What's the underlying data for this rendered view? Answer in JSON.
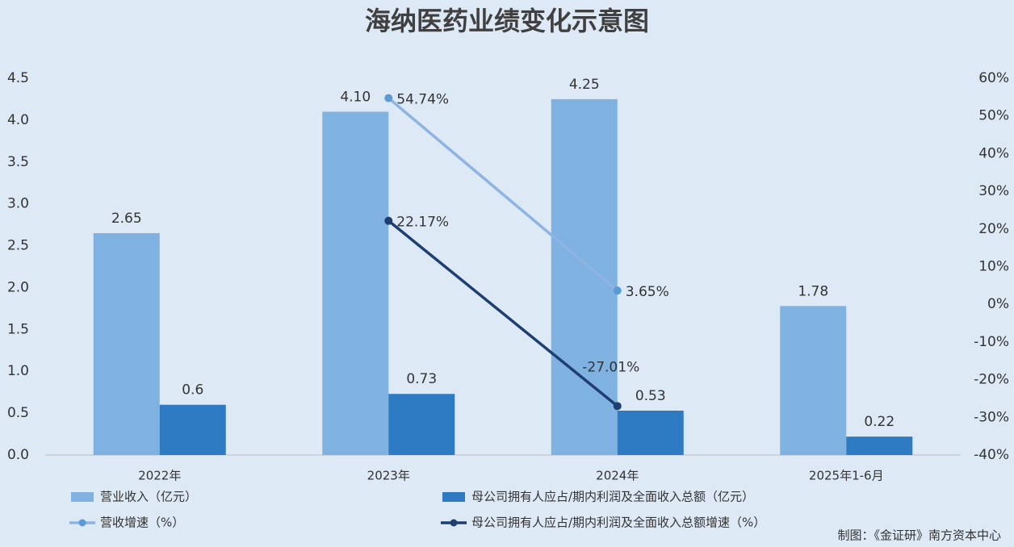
{
  "chart_data": {
    "type": "bar-line",
    "title": "海纳医药业绩变化示意图",
    "source": "制图：《金证研》南方资本中心",
    "categories": [
      "2022年",
      "2023年",
      "2024年",
      "2025年1-6月"
    ],
    "series": [
      {
        "name": "营业收入（亿元）",
        "kind": "bar",
        "color": "#7fb2e0",
        "values": [
          2.65,
          4.1,
          4.25,
          1.78
        ],
        "value_labels": [
          "2.65",
          "4.10",
          "4.25",
          "1.78"
        ]
      },
      {
        "name": "母公司拥有人应占/期内利润及全面收入总额（亿元）",
        "kind": "bar",
        "color": "#2e7bc4",
        "values": [
          0.6,
          0.73,
          0.53,
          0.22
        ]
      },
      {
        "name": "营收增速（%）",
        "kind": "line",
        "axis": "y2",
        "color": "#8db4e2",
        "marker_color": "#5b9bd5",
        "values": [
          null,
          54.74,
          3.65,
          null
        ],
        "value_labels": [
          null,
          "54.74%",
          "3.65%",
          null
        ]
      },
      {
        "name": "母公司拥有人应占/期内利润及全面收入总额增速（%）",
        "kind": "line",
        "axis": "y2",
        "color": "#1f3f73",
        "marker_color": "#1f3f73",
        "values": [
          null,
          22.17,
          -27.01,
          null
        ],
        "value_labels": [
          null,
          "22.17%",
          "-27.01%",
          null
        ]
      }
    ],
    "ylim": [
      0,
      4.5
    ],
    "yticks": [
      {
        "value": 0,
        "label": "0.0"
      },
      {
        "value": 0.5,
        "label": "0.5"
      },
      {
        "value": 1,
        "label": "1.0"
      },
      {
        "value": 1.5,
        "label": "1.5"
      },
      {
        "value": 2,
        "label": "2.0"
      },
      {
        "value": 2.5,
        "label": "2.5"
      },
      {
        "value": 3,
        "label": "3.0"
      },
      {
        "value": 3.5,
        "label": "3.5"
      },
      {
        "value": 4,
        "label": "4.0"
      },
      {
        "value": 4.5,
        "label": "4.5"
      }
    ],
    "y2lim": [
      -40,
      60
    ],
    "y2ticks": [
      {
        "value": -40,
        "label": "-40%"
      },
      {
        "value": -30,
        "label": "-30%"
      },
      {
        "value": -20,
        "label": "-20%"
      },
      {
        "value": -10,
        "label": "-10%"
      },
      {
        "value": 0,
        "label": "0%"
      },
      {
        "value": 10,
        "label": "10%"
      },
      {
        "value": 20,
        "label": "20%"
      },
      {
        "value": 30,
        "label": "30%"
      },
      {
        "value": 40,
        "label": "40%"
      },
      {
        "value": 50,
        "label": "50%"
      },
      {
        "value": 60,
        "label": "60%"
      }
    ],
    "grid": false
  }
}
